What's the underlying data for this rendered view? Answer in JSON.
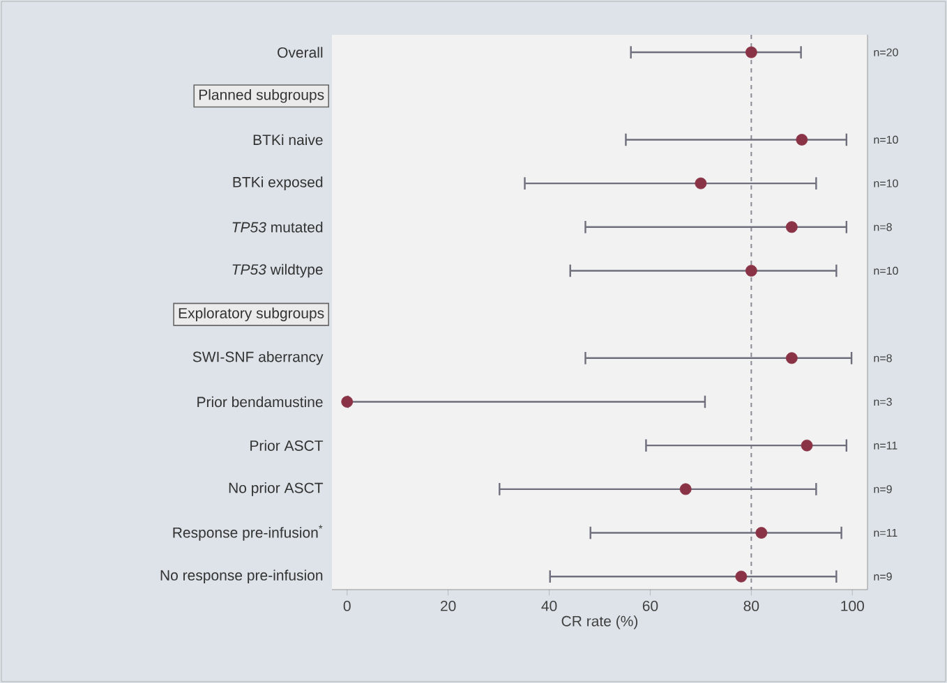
{
  "chart_data": {
    "type": "scatter",
    "orientation": "horizontal",
    "xlabel": "CR rate (%)",
    "categories": [
      "Overall",
      "Planned subgroups",
      "BTKi naive",
      "BTKi exposed",
      "*TP53* mutated",
      "*TP53* wildtype",
      "Exploratory subgroups",
      "SWI-SNF aberrancy",
      "Prior bendamustine",
      "Prior ASCT",
      "No prior ASCT",
      "Response pre-infusion$^{*}$",
      "No response pre-infusion"
    ],
    "values": [
      80,
      null,
      90,
      70,
      88,
      80,
      null,
      88,
      0,
      91,
      67,
      82,
      78
    ],
    "errors": [
      [
        56,
        90
      ],
      null,
      [
        55,
        99
      ],
      [
        35,
        93
      ],
      [
        47,
        99
      ],
      [
        44,
        97
      ],
      null,
      [
        47,
        100
      ],
      [
        0,
        71
      ],
      [
        59,
        99
      ],
      [
        30,
        93
      ],
      [
        48,
        98
      ],
      [
        40,
        97
      ]
    ],
    "annotations": [
      "n=20",
      "n=10",
      "n=10",
      "n=8",
      "n=10",
      "n=8",
      "n=3",
      "n=11",
      "n=9",
      "n=11",
      "n=9"
    ],
    "color": "#8a3346",
    "marker": "circle",
    "xlim": [
      -3,
      103
    ],
    "xticks": [
      0,
      20,
      40,
      60,
      80,
      100
    ],
    "ref_lines": [
      {
        "axis": "x",
        "value": 80,
        "color": "#8a8a96",
        "line_style": "dashed"
      }
    ]
  }
}
